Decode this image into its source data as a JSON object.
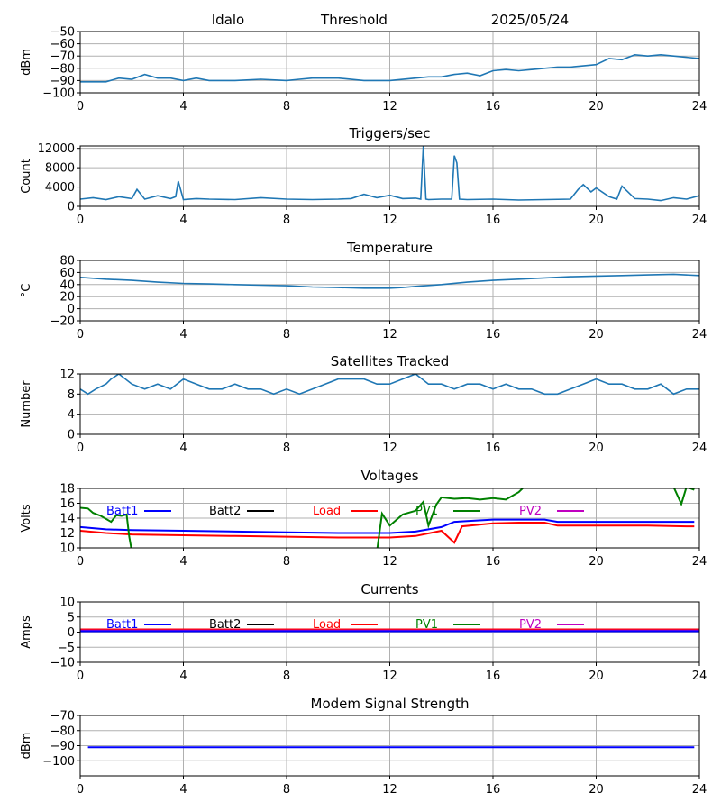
{
  "header": {
    "station": "Idalo",
    "subtitle": "Threshold",
    "date": "2025/05/24"
  },
  "chart_data": [
    {
      "type": "line",
      "title": "",
      "ylabel": "dBm",
      "ylim": [
        -100,
        -50
      ],
      "yticks": [
        -100,
        -90,
        -80,
        -70,
        -60,
        -50
      ],
      "xlim": [
        0,
        24
      ],
      "xticks": [
        0,
        4,
        8,
        12,
        16,
        20,
        24
      ],
      "grid": true,
      "series": [
        {
          "color": "#1f77b4",
          "x": [
            0,
            1,
            1.5,
            2,
            2.5,
            3,
            3.5,
            4,
            4.5,
            5,
            6,
            7,
            8,
            8.5,
            9,
            10,
            11,
            12,
            13,
            13.5,
            14,
            14.5,
            15,
            15.5,
            16,
            16.5,
            17,
            17.5,
            18,
            18.5,
            19,
            19.5,
            20,
            20.5,
            21,
            21.5,
            22,
            22.5,
            23,
            23.5,
            24
          ],
          "y": [
            -91,
            -91,
            -88,
            -89,
            -85,
            -88,
            -88,
            -90,
            -88,
            -90,
            -90,
            -89,
            -90,
            -89,
            -88,
            -88,
            -90,
            -90,
            -88,
            -87,
            -87,
            -85,
            -84,
            -86,
            -82,
            -81,
            -82,
            -81,
            -80,
            -79,
            -79,
            -78,
            -77,
            -72,
            -73,
            -69,
            -70,
            -69,
            -70,
            -71,
            -72
          ]
        }
      ]
    },
    {
      "type": "line",
      "title": "Triggers/sec",
      "ylabel": "Count",
      "ylim": [
        0,
        12500
      ],
      "yticks": [
        0,
        4000,
        8000,
        12000
      ],
      "xlim": [
        0,
        24
      ],
      "xticks": [
        0,
        4,
        8,
        12,
        16,
        20,
        24
      ],
      "grid": true,
      "series": [
        {
          "color": "#1f77b4",
          "x": [
            0,
            0.5,
            1,
            1.5,
            2,
            2.2,
            2.5,
            3,
            3.5,
            3.7,
            3.8,
            4,
            4.5,
            5,
            6,
            7,
            8,
            9,
            10,
            10.5,
            11,
            11.5,
            12,
            12.5,
            13,
            13.2,
            13.3,
            13.4,
            13.5,
            14,
            14.4,
            14.5,
            14.6,
            14.7,
            15,
            16,
            17,
            18,
            19,
            19.3,
            19.5,
            19.8,
            20,
            20.5,
            20.8,
            21,
            21.5,
            22,
            22.5,
            23,
            23.5,
            24
          ],
          "y": [
            1500,
            1800,
            1400,
            2000,
            1600,
            3500,
            1500,
            2200,
            1600,
            2000,
            5200,
            1400,
            1600,
            1500,
            1400,
            1800,
            1500,
            1400,
            1500,
            1600,
            2500,
            1800,
            2300,
            1600,
            1700,
            1500,
            12500,
            1500,
            1400,
            1500,
            1500,
            10500,
            9000,
            1500,
            1400,
            1500,
            1300,
            1400,
            1500,
            3500,
            4500,
            3000,
            3800,
            2000,
            1500,
            4200,
            1600,
            1500,
            1200,
            1800,
            1500,
            2200
          ]
        }
      ]
    },
    {
      "type": "line",
      "title": "Temperature",
      "ylabel": "°C",
      "ylim": [
        -20,
        80
      ],
      "yticks": [
        -20,
        0,
        20,
        40,
        60,
        80
      ],
      "xlim": [
        0,
        24
      ],
      "xticks": [
        0,
        4,
        8,
        12,
        16,
        20,
        24
      ],
      "grid": true,
      "series": [
        {
          "color": "#1f77b4",
          "x": [
            0,
            1,
            2,
            3,
            4,
            5,
            6,
            7,
            8,
            9,
            10,
            11,
            12,
            12.5,
            13,
            14,
            15,
            16,
            17,
            18,
            19,
            20,
            21,
            22,
            23,
            24
          ],
          "y": [
            52,
            49,
            47,
            44,
            42,
            41,
            40,
            39,
            38,
            36,
            35,
            34,
            34,
            35,
            37,
            40,
            44,
            47,
            49,
            51,
            53,
            54,
            55,
            56,
            57,
            55
          ]
        }
      ]
    },
    {
      "type": "line",
      "title": "Satellites Tracked",
      "ylabel": "Number",
      "ylim": [
        0,
        12
      ],
      "yticks": [
        0,
        4,
        8,
        12
      ],
      "xlim": [
        0,
        24
      ],
      "xticks": [
        0,
        4,
        8,
        12,
        16,
        20,
        24
      ],
      "grid": true,
      "series": [
        {
          "color": "#1f77b4",
          "x": [
            0,
            0.3,
            0.6,
            1,
            1.2,
            1.5,
            2,
            2.5,
            3,
            3.5,
            4,
            4.5,
            5,
            5.5,
            6,
            6.5,
            7,
            7.5,
            8,
            8.5,
            9,
            9.5,
            10,
            10.5,
            11,
            11.5,
            12,
            12.5,
            13,
            13.5,
            14,
            14.5,
            15,
            15.5,
            16,
            16.5,
            17,
            17.5,
            18,
            18.5,
            19,
            19.5,
            20,
            20.5,
            21,
            21.5,
            22,
            22.5,
            23,
            23.5,
            24
          ],
          "y": [
            9,
            8,
            9,
            10,
            11,
            12,
            10,
            9,
            10,
            9,
            11,
            10,
            9,
            9,
            10,
            9,
            9,
            8,
            9,
            8,
            9,
            10,
            11,
            11,
            11,
            10,
            10,
            11,
            12,
            10,
            10,
            9,
            10,
            10,
            9,
            10,
            9,
            9,
            8,
            8,
            9,
            10,
            11,
            10,
            10,
            9,
            9,
            10,
            8,
            9,
            9
          ]
        }
      ]
    },
    {
      "type": "line",
      "title": "Voltages",
      "ylabel": "Volts",
      "ylim": [
        10,
        18
      ],
      "yticks": [
        10,
        12,
        14,
        16,
        18
      ],
      "xlim": [
        0,
        24
      ],
      "xticks": [
        0,
        4,
        8,
        12,
        16,
        20,
        24
      ],
      "grid": true,
      "legend": [
        "Batt1",
        "Batt2",
        "Load",
        "PV1",
        "PV2"
      ],
      "series": [
        {
          "name": "Batt1",
          "color": "#0000ff",
          "x": [
            0,
            1,
            2,
            4,
            6,
            8,
            10,
            12,
            13,
            14,
            14.5,
            15,
            16,
            17,
            18,
            18.5,
            20,
            22,
            23.5,
            23.8
          ],
          "y": [
            12.8,
            12.5,
            12.4,
            12.3,
            12.2,
            12.1,
            12.0,
            12.0,
            12.2,
            12.8,
            13.5,
            13.6,
            13.8,
            13.8,
            13.8,
            13.5,
            13.5,
            13.5,
            13.5,
            13.5
          ]
        },
        {
          "name": "Load",
          "color": "#ff0000",
          "x": [
            0,
            1,
            2,
            4,
            6,
            8,
            10,
            12,
            13,
            14,
            14.5,
            14.8,
            16,
            17,
            18,
            18.5,
            20,
            22,
            23.5,
            23.8
          ],
          "y": [
            12.3,
            12.0,
            11.8,
            11.7,
            11.6,
            11.5,
            11.4,
            11.4,
            11.6,
            12.3,
            10.7,
            12.9,
            13.3,
            13.4,
            13.4,
            13.0,
            13.0,
            13.0,
            12.9,
            12.9
          ]
        },
        {
          "name": "PV1",
          "color": "#008000",
          "x": [
            0,
            0.3,
            0.5,
            0.8,
            1.2,
            1.4,
            1.6,
            1.8,
            1.9,
            2.0,
            null,
            11.5,
            11.7,
            12.0,
            12.5,
            13.0,
            13.3,
            13.5,
            13.8,
            14.0,
            14.5,
            15.0,
            15.5,
            16.0,
            16.5,
            17.0,
            17.2,
            null,
            23.0,
            23.3,
            23.5,
            23.8
          ],
          "y": [
            15.4,
            15.3,
            14.7,
            14.3,
            13.5,
            14.4,
            14.3,
            14.5,
            11.5,
            9.5,
            null,
            9.5,
            14.6,
            13.0,
            14.5,
            15.0,
            16.2,
            13.0,
            15.8,
            16.8,
            16.6,
            16.7,
            16.5,
            16.7,
            16.5,
            17.5,
            18.2,
            null,
            18.2,
            15.9,
            18.2,
            17.8
          ]
        }
      ]
    },
    {
      "type": "line",
      "title": "Currents",
      "ylabel": "Amps",
      "ylim": [
        -10,
        10
      ],
      "yticks": [
        -10,
        -5,
        0,
        5,
        10
      ],
      "xlim": [
        0,
        24
      ],
      "xticks": [
        0,
        4,
        8,
        12,
        16,
        20,
        24
      ],
      "grid": true,
      "legend": [
        "Batt1",
        "Batt2",
        "Load",
        "PV1",
        "PV2"
      ],
      "series": [
        {
          "name": "Load",
          "color": "#ff0000",
          "x": [
            0,
            24
          ],
          "y": [
            0.9,
            0.9
          ]
        },
        {
          "name": "PV2",
          "color": "#c000c0",
          "x": [
            0,
            24
          ],
          "y": [
            0.5,
            0.5
          ]
        },
        {
          "name": "Batt1",
          "color": "#0000ff",
          "x": [
            0,
            24
          ],
          "y": [
            0.3,
            0.3
          ]
        }
      ]
    },
    {
      "type": "line",
      "title": "Modem Signal Strength",
      "ylabel": "dBm",
      "ylim": [
        -110,
        -70
      ],
      "yticks": [
        -100,
        -90,
        -80,
        -70
      ],
      "xlim": [
        0,
        24
      ],
      "xticks": [
        0,
        4,
        8,
        12,
        16,
        20,
        24
      ],
      "grid": true,
      "series": [
        {
          "color": "#0000ff",
          "x": [
            0.3,
            23.8
          ],
          "y": [
            -91,
            -91
          ]
        }
      ]
    }
  ],
  "legend_colors": {
    "Batt1": "#0000ff",
    "Batt2": "#000000",
    "Load": "#ff0000",
    "PV1": "#008000",
    "PV2": "#c000c0"
  }
}
